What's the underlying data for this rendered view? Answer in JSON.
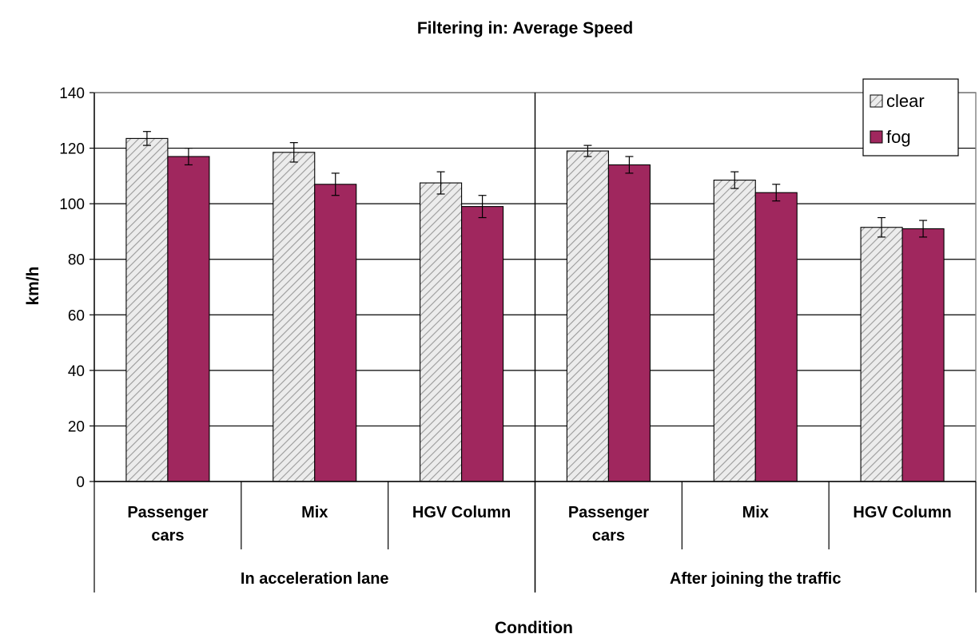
{
  "chart_data": {
    "type": "bar",
    "title": "Filtering in: Average Speed",
    "xlabel": "Condition",
    "ylabel": "km/h",
    "ylim": [
      0,
      140
    ],
    "yticks": [
      0,
      20,
      40,
      60,
      80,
      100,
      120,
      140
    ],
    "grid": true,
    "legend_position": "top-right",
    "groups": [
      {
        "label": "In acceleration lane",
        "categories": [
          "Passenger cars",
          "Mix",
          "HGV Column"
        ]
      },
      {
        "label": "After joining the traffic",
        "categories": [
          "Passenger cars",
          "Mix",
          "HGV Column"
        ]
      }
    ],
    "categories": [
      "Passenger cars",
      "Mix",
      "HGV Column",
      "Passenger cars",
      "Mix",
      "HGV Column"
    ],
    "series": [
      {
        "name": "clear",
        "pattern": "hatched",
        "color": "#ebebeb",
        "values": [
          123.5,
          118.5,
          107.5,
          119,
          108.5,
          91.5
        ],
        "error": [
          2.5,
          3.5,
          4,
          2,
          3,
          3.5
        ]
      },
      {
        "name": "fog",
        "pattern": "solid",
        "color": "#a0275e",
        "values": [
          117,
          107,
          99,
          114,
          104,
          91
        ],
        "error": [
          3,
          4,
          4,
          3,
          3,
          3
        ]
      }
    ]
  }
}
